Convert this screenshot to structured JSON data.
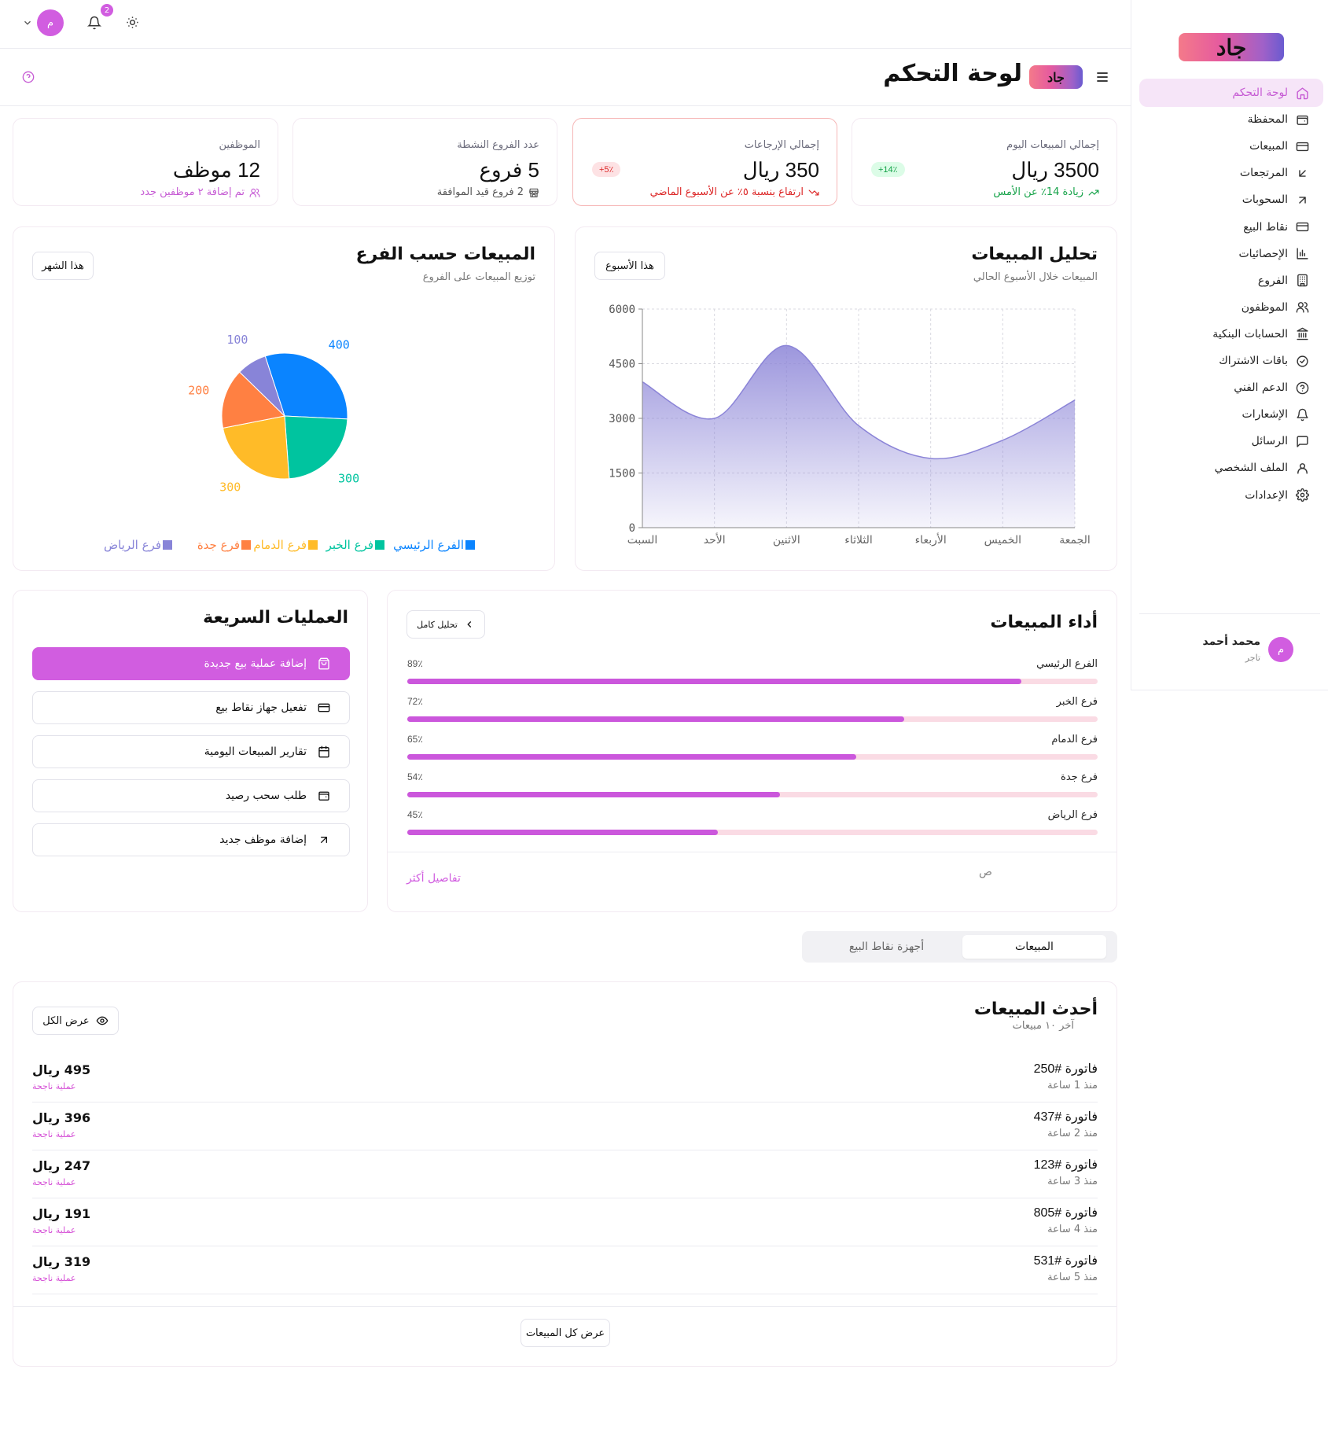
{
  "sidebar": {
    "logo_text": "جاد",
    "items": [
      {
        "label": "لوحة التحكم",
        "icon": "home-icon"
      },
      {
        "label": "المحفظة",
        "icon": "wallet-icon"
      },
      {
        "label": "المبيعات",
        "icon": "credit-card-icon"
      },
      {
        "label": "المرتجعات",
        "icon": "arrow-down-left-icon"
      },
      {
        "label": "السحوبات",
        "icon": "arrow-up-right-icon"
      },
      {
        "label": "نقاط البيع",
        "icon": "credit-card-icon"
      },
      {
        "label": "الإحصائيات",
        "icon": "bar-chart-icon"
      },
      {
        "label": "الفروع",
        "icon": "building-icon"
      },
      {
        "label": "الموظفون",
        "icon": "users-icon"
      },
      {
        "label": "الحسابات البنكية",
        "icon": "bank-icon"
      },
      {
        "label": "باقات الاشتراك",
        "icon": "badge-check-icon"
      },
      {
        "label": "الدعم الفني",
        "icon": "help-circle-icon"
      },
      {
        "label": "الإشعارات",
        "icon": "bell-icon"
      },
      {
        "label": "الرسائل",
        "icon": "message-icon"
      },
      {
        "label": "الملف الشخصي",
        "icon": "user-icon"
      },
      {
        "label": "الإعدادات",
        "icon": "settings-icon"
      }
    ],
    "user": {
      "name": "محمد أحمد",
      "role": "تاجر",
      "avatar_letter": "م"
    }
  },
  "topbar": {
    "avatar_letter": "م",
    "notification_count": "2"
  },
  "header": {
    "title": "لوحة التحكم",
    "logo_text": "جاد"
  },
  "stats": [
    {
      "label": "إجمالي المبيعات اليوم",
      "value": "3500 ريال",
      "sub": "زيادة 14٪ عن الأمس",
      "badge": "+14٪",
      "color": "#17a34a",
      "badge_bg": "#dcfce7"
    },
    {
      "label": "إجمالي الإرجاعات",
      "value": "350 ريال",
      "sub": "ارتفاع بنسبة ٥٪ عن الأسبوع الماضي",
      "badge": "+5٪",
      "color": "#dc2626",
      "badge_bg": "#fde2e4"
    },
    {
      "label": "عدد الفروع النشطة",
      "value": "5 فروع",
      "sub": "2 فروع قيد الموافقة",
      "color": "#555"
    },
    {
      "label": "الموظفين",
      "value": "12 موظف",
      "sub": "تم إضافة ٢ موظفين جدد",
      "color": "#c65bd4"
    }
  ],
  "sales_analysis": {
    "title": "تحليل المبيعات",
    "subtitle": "المبيعات خلال الأسبوع الحالي",
    "filter": "هذا الأسبوع"
  },
  "branch_sales": {
    "title": "المبيعات حسب الفرع",
    "subtitle": "توزيع المبيعات على الفروع",
    "filter": "هذا الشهر"
  },
  "chart_data": [
    {
      "type": "area",
      "categories": [
        "السبت",
        "الأحد",
        "الاثنين",
        "الثلاثاء",
        "الأربعاء",
        "الخميس",
        "الجمعة"
      ],
      "values": [
        4000,
        3000,
        5000,
        2800,
        1900,
        2400,
        3500
      ],
      "ylim": [
        0,
        6000
      ],
      "yticks": [
        0,
        1500,
        3000,
        4500,
        6000
      ],
      "grid": true,
      "color": "#8b84d7"
    },
    {
      "type": "pie",
      "labels": [
        "الفرع الرئيسي",
        "فرع الخبر",
        "فرع الدمام",
        "فرع جدة",
        "فرع الرياض"
      ],
      "values": [
        400,
        300,
        300,
        200,
        100
      ],
      "colors": [
        "#0a84ff",
        "#00c49f",
        "#ffbb28",
        "#ff8042",
        "#8884d8"
      ],
      "legend": "bottom"
    }
  ],
  "quick_actions": {
    "title": "العمليات السريعة",
    "items": [
      {
        "label": "إضافة عملية بيع جديدة",
        "icon": "shopping-bag-icon"
      },
      {
        "label": "تفعيل جهاز نقاط بيع",
        "icon": "credit-card-icon"
      },
      {
        "label": "تقارير المبيعات اليومية",
        "icon": "calendar-icon"
      },
      {
        "label": "طلب سحب رصيد",
        "icon": "wallet-icon"
      },
      {
        "label": "إضافة موظف جديد",
        "icon": "arrow-up-right-icon"
      }
    ]
  },
  "performance": {
    "title": "أداء المبيعات",
    "button": "تحليل كامل",
    "rows": [
      {
        "name": "الفرع الرئيسي",
        "pct_label": "89٪",
        "pct": 89
      },
      {
        "name": "فرع الخبر",
        "pct_label": "72٪",
        "pct": 72
      },
      {
        "name": "فرع الدمام",
        "pct_label": "65٪",
        "pct": 65
      },
      {
        "name": "فرع جدة",
        "pct_label": "54٪",
        "pct": 54
      },
      {
        "name": "فرع الرياض",
        "pct_label": "45٪",
        "pct": 45
      }
    ],
    "footer_text": "ص",
    "more_link": "تفاصيل أكثر"
  },
  "tabs": [
    {
      "label": "المبيعات",
      "active": true
    },
    {
      "label": "أجهزة نقاط البيع",
      "active": false
    }
  ],
  "recent_sales": {
    "title": "أحدث المبيعات",
    "subtitle": "آخر ١٠ مبيعات",
    "view_all": "عرض الكل",
    "footer_button": "عرض كل المبيعات",
    "rows": [
      {
        "invoice": "فاتورة #250",
        "time": "منذ 1 ساعة",
        "amount": "495 ريال",
        "status": "عملية ناجحة"
      },
      {
        "invoice": "فاتورة #437",
        "time": "منذ 2 ساعة",
        "amount": "396 ريال",
        "status": "عملية ناجحة"
      },
      {
        "invoice": "فاتورة #123",
        "time": "منذ 3 ساعة",
        "amount": "247 ريال",
        "status": "عملية ناجحة"
      },
      {
        "invoice": "فاتورة #805",
        "time": "منذ 4 ساعة",
        "amount": "191 ريال",
        "status": "عملية ناجحة"
      },
      {
        "invoice": "فاتورة #531",
        "time": "منذ 5 ساعة",
        "amount": "319 ريال",
        "status": "عملية ناجحة"
      }
    ]
  }
}
